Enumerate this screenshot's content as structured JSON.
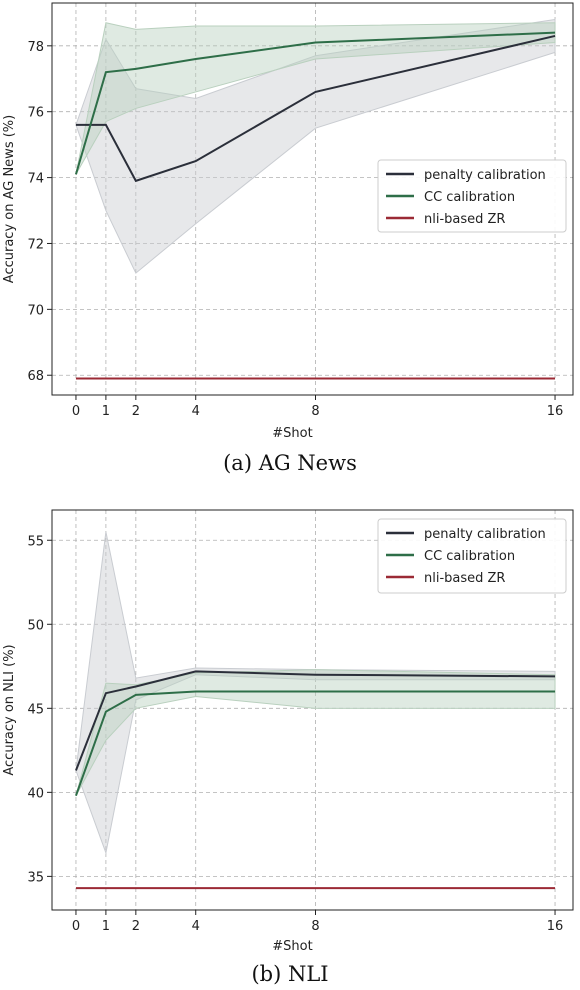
{
  "chart_data": [
    {
      "type": "line",
      "caption": "(a)  AG News",
      "xlabel": "#Shot",
      "ylabel": "Accuracy on AG News (%)",
      "x": [
        0,
        1,
        2,
        4,
        8,
        16
      ],
      "xticks": [
        0,
        1,
        2,
        4,
        8,
        16
      ],
      "yticks": [
        68,
        70,
        72,
        74,
        76,
        78
      ],
      "xlim": [
        -0.8,
        16.6
      ],
      "ylim": [
        67.4,
        79.3
      ],
      "grid": true,
      "legend_position": "center-right",
      "series": [
        {
          "name": "penalty calibration",
          "color": "#2b2f3a",
          "band_color": "#c9ccd1",
          "values": [
            75.6,
            75.6,
            73.9,
            74.5,
            76.6,
            78.3
          ],
          "lower": [
            75.6,
            73.0,
            71.1,
            72.6,
            75.5,
            77.8
          ],
          "upper": [
            75.6,
            78.2,
            76.7,
            76.4,
            77.7,
            78.8
          ]
        },
        {
          "name": "CC calibration",
          "color": "#2e6e48",
          "band_color": "#b9d0be",
          "values": [
            74.1,
            77.2,
            77.3,
            77.6,
            78.1,
            78.4
          ],
          "lower": [
            74.1,
            75.7,
            76.1,
            76.6,
            77.6,
            78.1
          ],
          "upper": [
            74.1,
            78.7,
            78.5,
            78.6,
            78.6,
            78.7
          ]
        },
        {
          "name": "nli-based ZR",
          "color": "#9b2a35",
          "values": [
            67.9,
            67.9,
            67.9,
            67.9,
            67.9,
            67.9
          ]
        }
      ]
    },
    {
      "type": "line",
      "caption": "(b)  NLI",
      "xlabel": "#Shot",
      "ylabel": "Accuracy on NLI (%)",
      "x": [
        0,
        1,
        2,
        4,
        8,
        16
      ],
      "xticks": [
        0,
        1,
        2,
        4,
        8,
        16
      ],
      "yticks": [
        35,
        40,
        45,
        50,
        55
      ],
      "xlim": [
        -0.8,
        16.6
      ],
      "ylim": [
        33.0,
        56.8
      ],
      "grid": true,
      "legend_position": "top-right",
      "series": [
        {
          "name": "penalty calibration",
          "color": "#2b2f3a",
          "band_color": "#c9ccd1",
          "values": [
            41.3,
            45.9,
            46.3,
            47.2,
            47.0,
            46.9
          ],
          "lower": [
            41.3,
            36.4,
            45.5,
            47.0,
            46.7,
            46.7
          ],
          "upper": [
            41.3,
            55.5,
            46.8,
            47.4,
            47.3,
            47.2
          ]
        },
        {
          "name": "CC calibration",
          "color": "#2e6e48",
          "band_color": "#b9d0be",
          "values": [
            39.8,
            44.8,
            45.8,
            46.0,
            46.0,
            46.0
          ],
          "lower": [
            39.8,
            43.1,
            45.0,
            45.7,
            45.0,
            45.0
          ],
          "upper": [
            39.8,
            46.5,
            46.4,
            47.1,
            47.3,
            47.0
          ]
        },
        {
          "name": "nli-based ZR",
          "color": "#9b2a35",
          "values": [
            34.3,
            34.3,
            34.3,
            34.3,
            34.3,
            34.3
          ]
        }
      ]
    }
  ]
}
